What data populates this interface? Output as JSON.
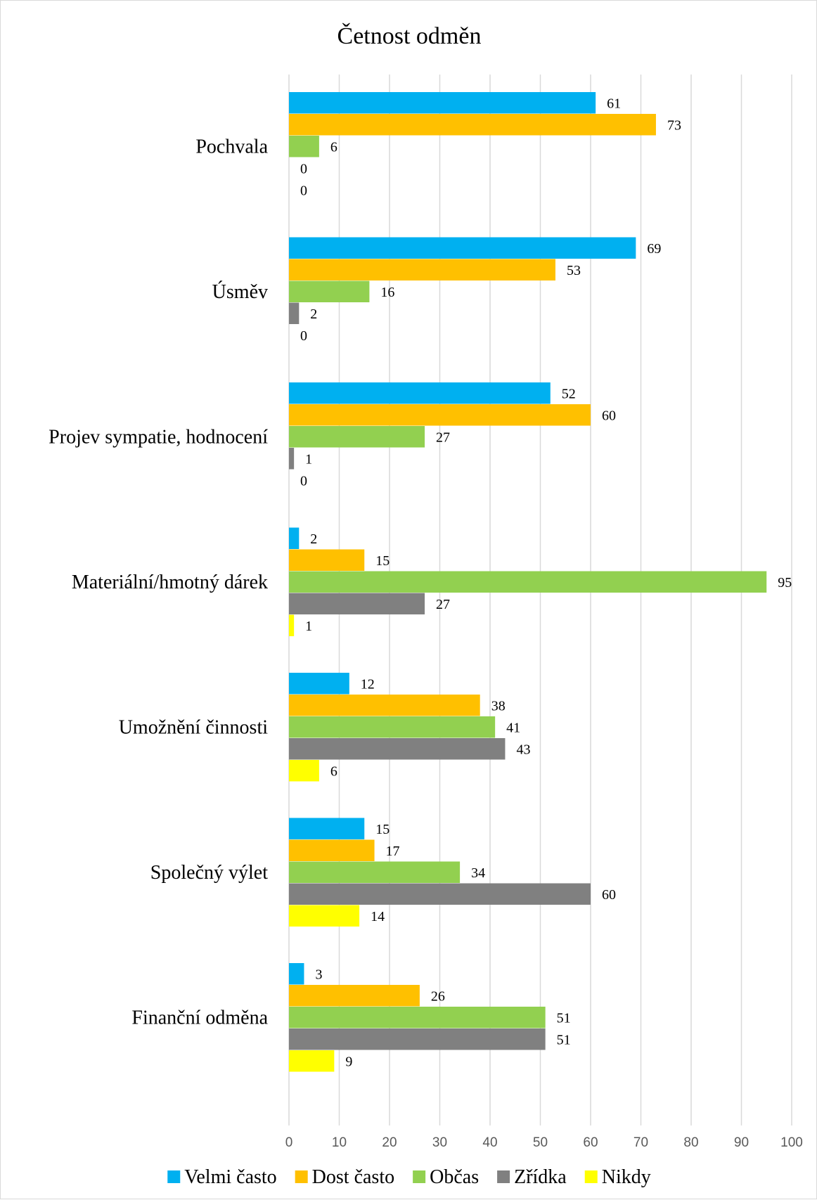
{
  "chart_data": {
    "type": "bar",
    "orientation": "horizontal",
    "title": "Četnost odměn",
    "xlabel": "",
    "ylabel": "",
    "xlim": [
      0,
      100
    ],
    "x_ticks": [
      0,
      10,
      20,
      30,
      40,
      50,
      60,
      70,
      80,
      90,
      100
    ],
    "grid": "vertical",
    "legend_position": "bottom",
    "categories": [
      "Pochvala",
      "Úsměv",
      "Projev sympatie, hodnocení",
      "Materiální/hmotný dárek",
      "Umožnění činnosti",
      "Společný výlet",
      "Finanční odměna"
    ],
    "series": [
      {
        "name": "Velmi často",
        "color": "#00b0f0",
        "values": [
          61,
          69,
          52,
          2,
          12,
          15,
          3
        ]
      },
      {
        "name": "Dost často",
        "color": "#ffc000",
        "values": [
          73,
          53,
          60,
          15,
          38,
          17,
          26
        ]
      },
      {
        "name": "Občas",
        "color": "#92d050",
        "values": [
          6,
          16,
          27,
          95,
          41,
          34,
          51
        ]
      },
      {
        "name": "Zřídka",
        "color": "#808080",
        "values": [
          0,
          2,
          1,
          27,
          43,
          60,
          51
        ]
      },
      {
        "name": "Nikdy",
        "color": "#ffff00",
        "values": [
          0,
          0,
          0,
          1,
          6,
          14,
          9
        ]
      }
    ]
  }
}
